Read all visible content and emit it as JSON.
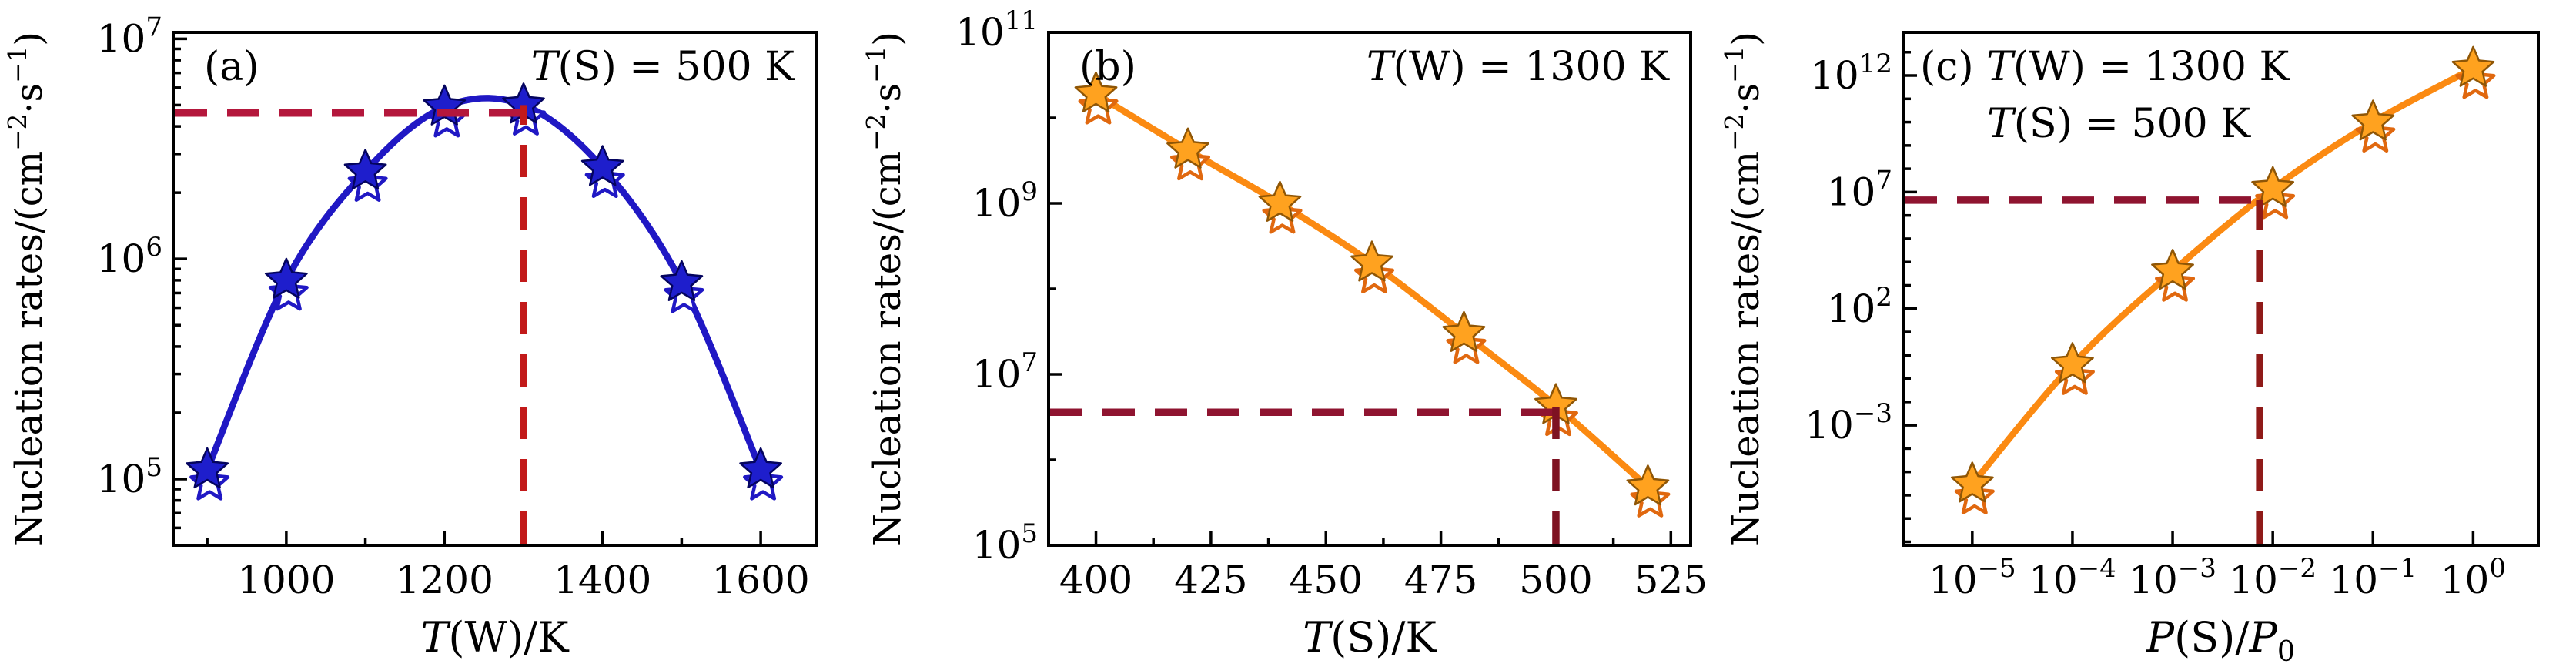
{
  "page": {
    "background": "#ffffff",
    "frame_color": "#000000"
  },
  "chart_data": [
    {
      "id": "a",
      "type": "line",
      "panel_label": "(a)",
      "x_scale": "linear",
      "y_scale": "log",
      "x_domain": [
        857,
        1670
      ],
      "y_domain": [
        50000.0,
        10700000.0
      ],
      "x_ticks": {
        "major": [
          {
            "v": 1000,
            "label": "1000"
          },
          {
            "v": 1200,
            "label": "1200"
          },
          {
            "v": 1400,
            "label": "1400"
          },
          {
            "v": 1600,
            "label": "1600"
          }
        ],
        "minor": [
          900,
          1100,
          1300,
          1500
        ]
      },
      "y_ticks": {
        "major_exponents": [
          5,
          6,
          7
        ],
        "minor_mode": "log-fine"
      },
      "xlabel": [
        {
          "text": "T",
          "italic": true
        },
        {
          "text": "(W)/K"
        }
      ],
      "ylabel": [
        {
          "text": "Nucleation rates/(cm"
        },
        {
          "text": "−2",
          "sup": true
        },
        {
          "text": "·s"
        },
        {
          "text": "−1",
          "sup": true
        },
        {
          "text": ")"
        }
      ],
      "annotations": [
        {
          "align": "left",
          "line": 1,
          "dx": 40,
          "segments": [
            {
              "text": "(a)"
            }
          ]
        },
        {
          "align": "right",
          "line": 1,
          "segments": [
            {
              "text": "T",
              "italic": true
            },
            {
              "text": "(S) = 500 K"
            }
          ]
        }
      ],
      "x": [
        900,
        1000,
        1100,
        1200,
        1300,
        1400,
        1500,
        1600
      ],
      "y": [
        110000.0,
        800000.0,
        2500000.0,
        4900000.0,
        5000000.0,
        2600000.0,
        780000.0,
        110000.0
      ],
      "line_color": "#2018c4",
      "series": [
        {
          "name": "filled-star",
          "marker": "star-filled",
          "fill": "#1e1ecc",
          "edge": "#04045e"
        },
        {
          "name": "open-star",
          "marker": "star-open",
          "fill": "#ffffff",
          "edge": "#2018c4"
        }
      ],
      "guide": {
        "h_value": 4600000.0,
        "h_end_x": 1300,
        "v_x": 1300,
        "v_top": 5000000.0,
        "h_color": "#b4173c",
        "v_color": "#c21a1a"
      }
    },
    {
      "id": "b",
      "type": "line",
      "panel_label": "(b)",
      "x_scale": "linear",
      "y_scale": "log",
      "x_domain": [
        389.7,
        529.3
      ],
      "y_domain": [
        100000.0,
        100000000000.0
      ],
      "x_ticks": {
        "major": [
          {
            "v": 400,
            "label": "400"
          },
          {
            "v": 425,
            "label": "425"
          },
          {
            "v": 450,
            "label": "450"
          },
          {
            "v": 475,
            "label": "475"
          },
          {
            "v": 500,
            "label": "500"
          },
          {
            "v": 525,
            "label": "525"
          }
        ],
        "minor": [
          412.5,
          437.5,
          462.5,
          487.5,
          512.5
        ]
      },
      "y_ticks": {
        "major_exponents": [
          5,
          7,
          9,
          11
        ],
        "minor_mode": "decades"
      },
      "xlabel": [
        {
          "text": "T",
          "italic": true
        },
        {
          "text": "(S)/K"
        }
      ],
      "ylabel": [
        {
          "text": "Nucleation rates/(cm"
        },
        {
          "text": "−2",
          "sup": true
        },
        {
          "text": "·s"
        },
        {
          "text": "−1",
          "sup": true
        },
        {
          "text": ")"
        }
      ],
      "annotations": [
        {
          "align": "left",
          "line": 1,
          "dx": 40,
          "segments": [
            {
              "text": "(b)"
            }
          ]
        },
        {
          "align": "right",
          "line": 1,
          "segments": [
            {
              "text": "T",
              "italic": true
            },
            {
              "text": "(W) = 1300 K"
            }
          ]
        }
      ],
      "x": [
        400,
        420,
        440,
        460,
        480,
        500,
        520
      ],
      "y": [
        19000000000.0,
        4200000000.0,
        1000000000.0,
        200000000.0,
        30000000.0,
        4300000.0,
        480000.0
      ],
      "line_color": "#fb8a12",
      "series": [
        {
          "name": "filled-star",
          "marker": "star-filled",
          "fill": "#ffa21f",
          "edge": "#8f5606"
        },
        {
          "name": "open-star",
          "marker": "star-open",
          "fill": "#ffffff",
          "edge": "#e0680f"
        }
      ],
      "guide": {
        "h_value": 3600000.0,
        "h_end_x": 500,
        "v_x": 500,
        "v_top": 4300000.0,
        "h_color": "#8f1430",
        "v_color": "#7e1222"
      }
    },
    {
      "id": "c",
      "type": "line",
      "panel_label": "(c)",
      "x_scale": "log",
      "y_scale": "log",
      "x_domain": [
        2.04e-06,
        4.47
      ],
      "y_domain": [
        7.1e-09,
        71000000000000.0
      ],
      "x_ticks": {
        "major_exponents": [
          -5,
          -4,
          -3,
          -2,
          -1,
          0
        ],
        "minor_mode": "none"
      },
      "y_ticks": {
        "major_exponents": [
          -3,
          2,
          7,
          12
        ],
        "minor_mode": "decades"
      },
      "xlabel": [
        {
          "text": "P",
          "italic": true
        },
        {
          "text": "(S)/"
        },
        {
          "text": "P",
          "italic": true
        },
        {
          "text": "0",
          "sub": true
        }
      ],
      "ylabel": [
        {
          "text": "Nucleation rates/(cm"
        },
        {
          "text": "−2",
          "sup": true
        },
        {
          "text": "·s"
        },
        {
          "text": "−1",
          "sup": true
        },
        {
          "text": ")"
        }
      ],
      "annotations": [
        {
          "align": "left",
          "line": 1,
          "dx": 22,
          "segments": [
            {
              "text": "(c) "
            },
            {
              "text": "T",
              "italic": true
            },
            {
              "text": "(W) = 1300 K"
            }
          ]
        },
        {
          "align": "left",
          "line": 2,
          "dx": 109,
          "segments": [
            {
              "text": "T",
              "italic": true
            },
            {
              "text": "(S) = 500 K"
            }
          ]
        }
      ],
      "x": [
        1e-05,
        0.0001,
        0.001,
        0.01,
        0.1,
        1.0
      ],
      "y": [
        3e-06,
        0.4,
        4000.0,
        14000000.0,
        10000000000.0,
        2000000000000.0
      ],
      "line_color": "#fb8a12",
      "series": [
        {
          "name": "filled-star",
          "marker": "star-filled",
          "fill": "#ffa21f",
          "edge": "#8f5606"
        },
        {
          "name": "open-star",
          "marker": "star-open",
          "fill": "#ffffff",
          "edge": "#e0680f"
        }
      ],
      "guide": {
        "h_value": 4500000.0,
        "h_end_x": 0.0074,
        "v_x": 0.0074,
        "v_top": 4500000.0,
        "h_color": "#8f1430",
        "v_color": "#8f1a18"
      }
    }
  ]
}
